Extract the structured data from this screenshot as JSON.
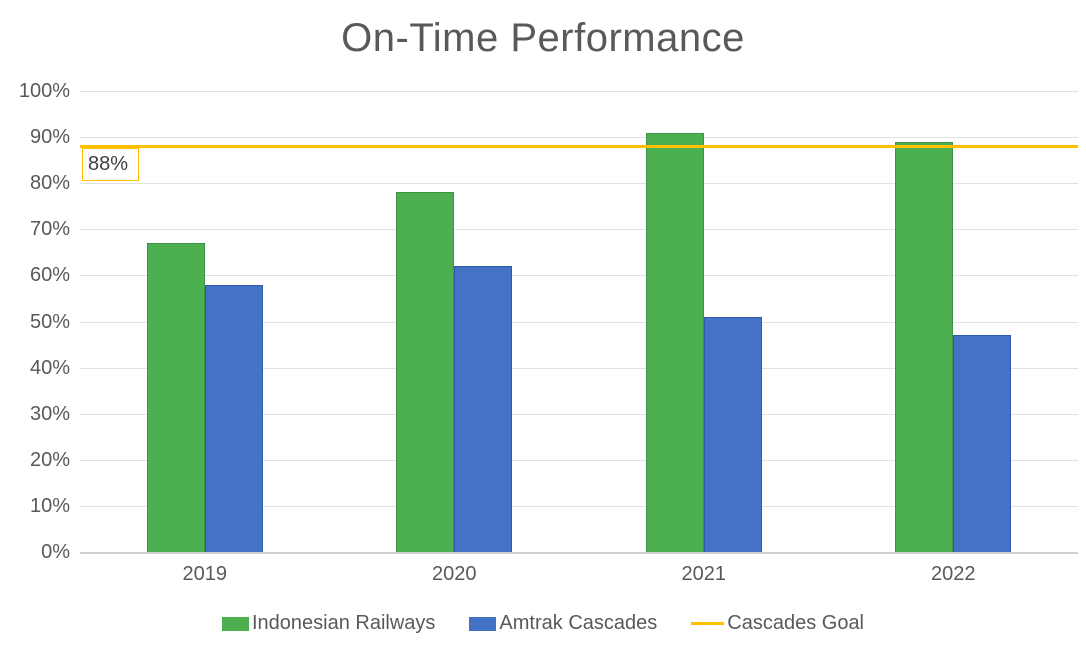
{
  "chart_data": {
    "type": "bar",
    "title": "On-Time Performance",
    "categories": [
      "2019",
      "2020",
      "2021",
      "2022"
    ],
    "series": [
      {
        "name": "Indonesian Railways",
        "color": "#4caf50",
        "border": "#3d9442",
        "values": [
          67,
          78,
          91,
          89
        ]
      },
      {
        "name": "Amtrak Cascades",
        "color": "#4472c4",
        "border": "#2f5cb0",
        "values": [
          58,
          62,
          51,
          47
        ]
      }
    ],
    "goal": {
      "name": "Cascades Goal",
      "value": 88,
      "annotation": "88%",
      "color": "#FFC000"
    },
    "yticks": [
      "0%",
      "10%",
      "20%",
      "30%",
      "40%",
      "50%",
      "60%",
      "70%",
      "80%",
      "90%",
      "100%"
    ],
    "ylim": [
      0,
      100
    ],
    "xlabel": "",
    "ylabel": "",
    "grid": "horizontal",
    "legend_position": "bottom"
  },
  "colors": {
    "title_text": "#595959",
    "axis_text": "#595959",
    "gridline": "#e2e2e2",
    "axis_line": "#cfcfcf",
    "background": "#ffffff"
  }
}
